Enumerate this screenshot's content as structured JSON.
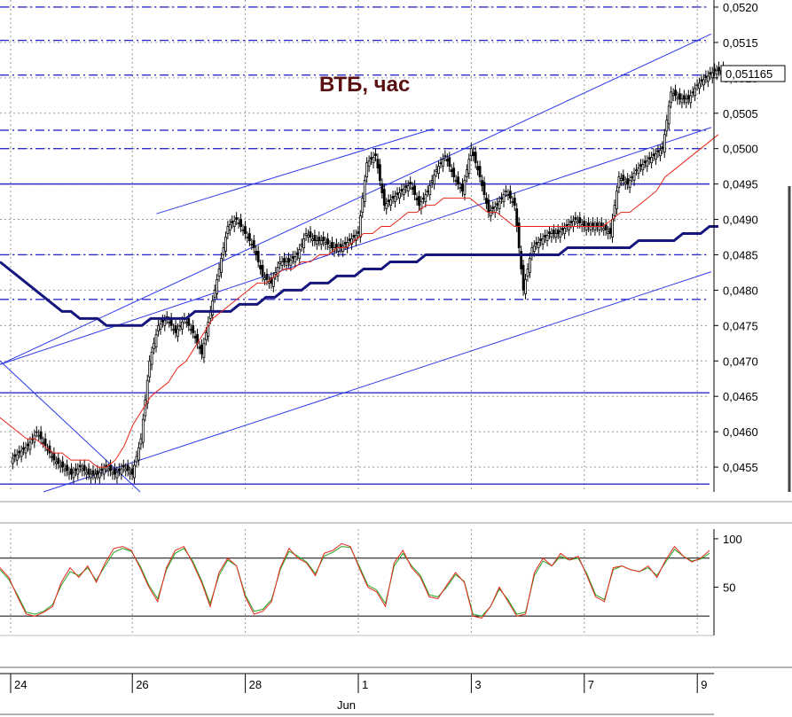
{
  "chart_data": [
    {
      "type": "candlestick",
      "title": "ВТБ, час",
      "current_price": "0,051165",
      "y_ticks": [
        "0,0520",
        "0,0515",
        "0,0510",
        "0,0505",
        "0,0500",
        "0,0495",
        "0,0490",
        "0,0485",
        "0,0480",
        "0,0475",
        "0,0470",
        "0,0465",
        "0,0460",
        "0,0455"
      ],
      "ylim": [
        0.04515,
        0.0521
      ],
      "x_ticks": [
        {
          "label": "24",
          "index": 0
        },
        {
          "label": "26",
          "index": 14
        },
        {
          "label": "28",
          "index": 27
        },
        {
          "label": "1",
          "index": 40
        },
        {
          "label": "3",
          "index": 53
        },
        {
          "label": "7",
          "index": 66
        },
        {
          "label": "9",
          "index": 79
        }
      ],
      "x_month_label": "Jun",
      "close_series": [
        0.0457,
        0.0458,
        0.046,
        0.0458,
        0.0456,
        0.0455,
        0.0454,
        0.0455,
        0.0454,
        0.0454,
        0.0455,
        0.0454,
        0.0455,
        0.0454,
        0.0459,
        0.047,
        0.0475,
        0.0476,
        0.0474,
        0.0476,
        0.0474,
        0.0471,
        0.0477,
        0.0483,
        0.0489,
        0.049,
        0.0488,
        0.0486,
        0.0482,
        0.0481,
        0.0484,
        0.0484,
        0.0485,
        0.0488,
        0.0487,
        0.0487,
        0.0486,
        0.0486,
        0.0487,
        0.0488,
        0.0498,
        0.0499,
        0.0492,
        0.0493,
        0.0494,
        0.0495,
        0.0492,
        0.0494,
        0.0497,
        0.0499,
        0.0496,
        0.0494,
        0.05,
        0.0496,
        0.0491,
        0.0492,
        0.0494,
        0.0492,
        0.048,
        0.0486,
        0.0487,
        0.0488,
        0.0488,
        0.0489,
        0.049,
        0.0489,
        0.0489,
        0.0489,
        0.0488,
        0.0496,
        0.0495,
        0.0497,
        0.0498,
        0.0499,
        0.05,
        0.0508,
        0.0507,
        0.0507,
        0.0509,
        0.051,
        0.0511,
        0.0511
      ],
      "sma_fast": [
        0.0462,
        0.0461,
        0.046,
        0.0459,
        0.0459,
        0.0458,
        0.0457,
        0.0457,
        0.0456,
        0.0456,
        0.0456,
        0.0455,
        0.0455,
        0.0456,
        0.0458,
        0.0461,
        0.0463,
        0.0465,
        0.0466,
        0.0467,
        0.0469,
        0.047,
        0.0472,
        0.0474,
        0.0476,
        0.0477,
        0.0478,
        0.0479,
        0.048,
        0.0481,
        0.0481,
        0.0482,
        0.0483,
        0.0483,
        0.0484,
        0.0484,
        0.0485,
        0.0485,
        0.0486,
        0.0486,
        0.0487,
        0.0488,
        0.0488,
        0.0489,
        0.0489,
        0.049,
        0.0491,
        0.0491,
        0.0492,
        0.0492,
        0.0493,
        0.0493,
        0.0493,
        0.0493,
        0.0492,
        0.0491,
        0.0491,
        0.049,
        0.0489,
        0.0489,
        0.0489,
        0.0489,
        0.0489,
        0.0489,
        0.0489,
        0.0489,
        0.0489,
        0.0489,
        0.0489,
        0.049,
        0.0491,
        0.0491,
        0.0492,
        0.0493,
        0.0494,
        0.0496,
        0.0497,
        0.0498,
        0.0499,
        0.05,
        0.0501,
        0.0502
      ],
      "sma_slow": [
        0.0484,
        0.0483,
        0.0482,
        0.0481,
        0.048,
        0.0479,
        0.0478,
        0.0477,
        0.0477,
        0.0476,
        0.0476,
        0.0476,
        0.0475,
        0.0475,
        0.0475,
        0.0475,
        0.0475,
        0.0476,
        0.0476,
        0.0476,
        0.0476,
        0.0476,
        0.0477,
        0.0477,
        0.0477,
        0.0477,
        0.0477,
        0.0478,
        0.0478,
        0.0478,
        0.0479,
        0.0479,
        0.048,
        0.048,
        0.048,
        0.0481,
        0.0481,
        0.0481,
        0.0482,
        0.0482,
        0.0482,
        0.0483,
        0.0483,
        0.0483,
        0.0484,
        0.0484,
        0.0484,
        0.0484,
        0.0485,
        0.0485,
        0.0485,
        0.0485,
        0.0485,
        0.0485,
        0.0485,
        0.0485,
        0.0485,
        0.0485,
        0.0485,
        0.0485,
        0.0485,
        0.0485,
        0.0485,
        0.0485,
        0.0486,
        0.0486,
        0.0486,
        0.0486,
        0.0486,
        0.0486,
        0.0486,
        0.0486,
        0.0487,
        0.0487,
        0.0487,
        0.0487,
        0.0487,
        0.0488,
        0.0488,
        0.0488,
        0.0489,
        0.0489
      ],
      "horizontal_levels": [
        {
          "value": 0.052,
          "style": "dashdot"
        },
        {
          "value": 0.05153,
          "style": "dashdot"
        },
        {
          "value": 0.05104,
          "style": "dashdot"
        },
        {
          "value": 0.05026,
          "style": "dashdot"
        },
        {
          "value": 0.05,
          "style": "dashdot"
        },
        {
          "value": 0.0495,
          "style": "solid"
        },
        {
          "value": 0.0485,
          "style": "dashdot"
        },
        {
          "value": 0.04787,
          "style": "dashdot"
        },
        {
          "value": 0.04655,
          "style": "solid"
        },
        {
          "value": 0.04526,
          "style": "solid"
        }
      ],
      "colors": {
        "candle": "#000000",
        "sma_fast": "#e8251a",
        "sma_slow": "#15157d",
        "channel": "#2d3ae8",
        "levels": "#2d2dcc",
        "grid": "#9a9a9a"
      }
    },
    {
      "type": "line",
      "y_ticks": [
        "100",
        "50"
      ],
      "ylim": [
        0,
        110
      ],
      "levels": [
        80,
        20
      ],
      "series": [
        {
          "values": [
            70,
            60,
            40,
            22,
            20,
            24,
            30,
            55,
            70,
            60,
            72,
            55,
            75,
            90,
            92,
            88,
            70,
            50,
            35,
            70,
            88,
            92,
            75,
            55,
            30,
            65,
            80,
            72,
            40,
            22,
            25,
            35,
            70,
            90,
            80,
            75,
            62,
            85,
            88,
            95,
            92,
            70,
            50,
            45,
            30,
            75,
            88,
            70,
            60,
            40,
            38,
            52,
            65,
            55,
            20,
            18,
            30,
            50,
            35,
            20,
            22,
            65,
            80,
            72,
            85,
            78,
            82,
            62,
            40,
            35,
            70,
            72,
            68,
            66,
            72,
            60,
            78,
            92,
            82,
            76,
            80,
            88
          ],
          "color": "#e8251a"
        },
        {
          "values": [
            68,
            58,
            42,
            24,
            22,
            25,
            32,
            52,
            66,
            62,
            70,
            57,
            72,
            86,
            90,
            87,
            72,
            52,
            38,
            68,
            85,
            90,
            77,
            57,
            33,
            62,
            78,
            72,
            42,
            25,
            27,
            37,
            68,
            87,
            82,
            76,
            64,
            82,
            86,
            92,
            91,
            72,
            52,
            47,
            33,
            72,
            85,
            72,
            62,
            42,
            40,
            50,
            63,
            56,
            22,
            20,
            30,
            48,
            37,
            22,
            24,
            62,
            77,
            72,
            82,
            78,
            80,
            64,
            42,
            37,
            68,
            72,
            68,
            66,
            70,
            62,
            76,
            89,
            82,
            77,
            79,
            85
          ],
          "color": "#1fa51f"
        }
      ]
    }
  ]
}
